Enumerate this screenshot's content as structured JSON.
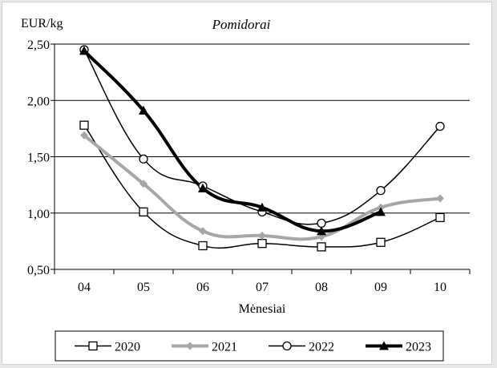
{
  "chart_data": {
    "type": "line",
    "title": "Pomidorai",
    "ylabel": "EUR/kg",
    "xlabel": "Mėnesiai",
    "categories": [
      "04",
      "05",
      "06",
      "07",
      "08",
      "09",
      "10"
    ],
    "ylim": [
      0.5,
      2.5
    ],
    "yticks": [
      "0,50",
      "1,00",
      "1,50",
      "2,00",
      "2,50"
    ],
    "ytick_values": [
      0.5,
      1.0,
      1.5,
      2.0,
      2.5
    ],
    "grid": true,
    "legend_position": "bottom",
    "series": [
      {
        "name": "2020",
        "values": [
          1.78,
          1.01,
          0.71,
          0.73,
          0.7,
          0.74,
          0.96
        ],
        "color": "#000000",
        "marker": "square-open",
        "width": 1.5
      },
      {
        "name": "2021",
        "values": [
          1.69,
          1.26,
          0.84,
          0.8,
          0.79,
          1.05,
          1.13
        ],
        "color": "#a6a6a6",
        "marker": "diamond",
        "width": 4
      },
      {
        "name": "2022",
        "values": [
          2.45,
          1.48,
          1.24,
          1.01,
          0.91,
          1.2,
          1.77
        ],
        "color": "#000000",
        "marker": "circle-open",
        "width": 1.5
      },
      {
        "name": "2023",
        "values": [
          2.44,
          1.91,
          1.22,
          1.05,
          0.84,
          1.01,
          null
        ],
        "color": "#000000",
        "marker": "triangle",
        "width": 4
      }
    ]
  }
}
